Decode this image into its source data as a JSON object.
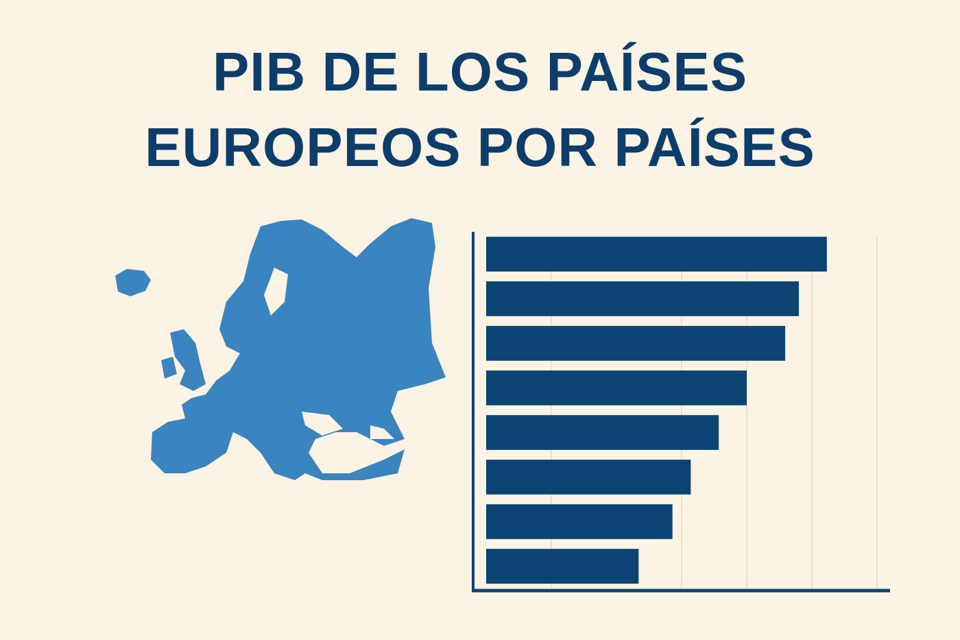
{
  "chart_data": {
    "type": "barh",
    "title": "PIB DE LOS PAÍSES EUROPEOS POR PAÍSES",
    "values": [
      5.23,
      4.8,
      4.59,
      4.0,
      3.57,
      3.14,
      2.86,
      2.34
    ],
    "color": "#0b4373",
    "xlim": [
      -0.2,
      6.2
    ],
    "xticks": [
      1,
      3,
      4,
      5,
      6
    ],
    "grid": true
  }
}
